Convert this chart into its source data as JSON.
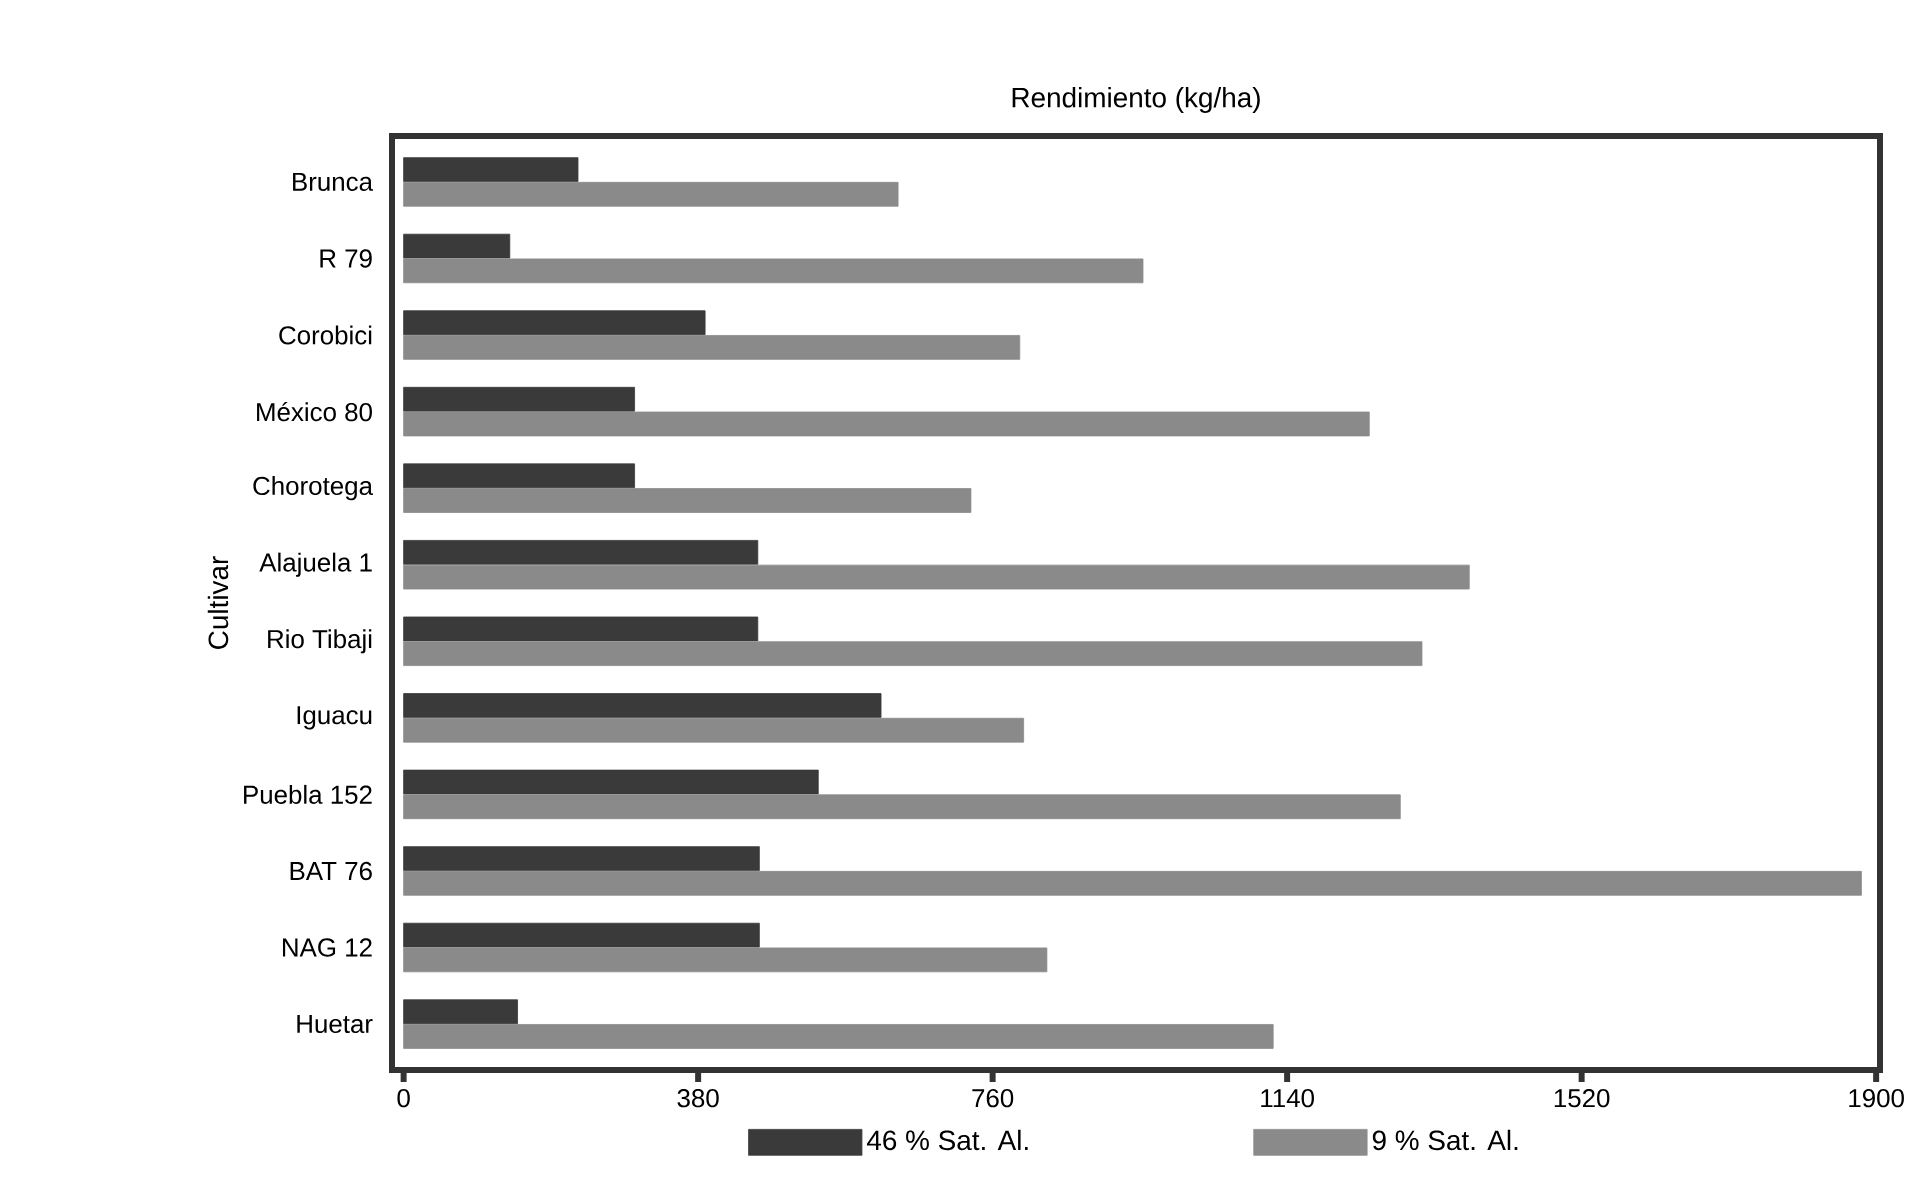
{
  "chart_data": {
    "type": "bar",
    "orientation": "horizontal",
    "xlabel": "Rendimiento (kg/ha)",
    "ylabel": "Cultivar",
    "categories": [
      "Brunca",
      "R 79",
      "Corobici",
      "México 80",
      "Chorotega",
      "Alajuela 1",
      "Rio Tibaji",
      "Iguacu",
      "Puebla 152",
      "BAT 76",
      "NAG 12",
      "Huetar"
    ],
    "series": [
      {
        "name": "46 % Sat. Al.",
        "color": "#3a3a3a",
        "values": [
          225,
          137,
          389,
          298,
          298,
          457,
          457,
          616,
          535,
          459,
          459,
          147
        ]
      },
      {
        "name": "9 % Sat. Al.",
        "color": "#8a8a8a",
        "values": [
          638,
          954,
          795,
          1246,
          732,
          1375,
          1314,
          800,
          1286,
          1881,
          830,
          1122
        ]
      }
    ],
    "xlim": [
      -15,
      1905
    ],
    "xticks": [
      0,
      380,
      760,
      1140,
      1520,
      1900
    ],
    "legend": "bottom",
    "grid": false
  }
}
